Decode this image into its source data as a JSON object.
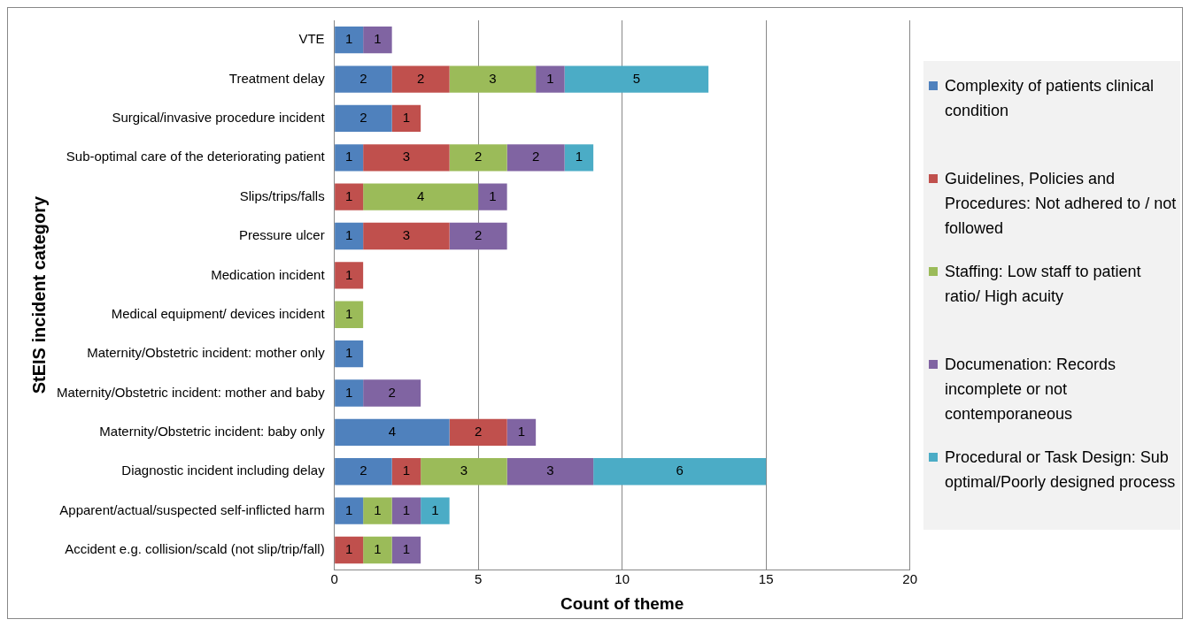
{
  "chart_data": {
    "type": "bar",
    "orientation": "horizontal",
    "stacked": true,
    "xlabel": "Count of theme",
    "ylabel": "StEIS incident category",
    "categories": [
      "VTE",
      "Treatment delay",
      "Surgical/invasive procedure incident",
      "Sub-optimal care of the deteriorating patient",
      "Slips/trips/falls",
      "Pressure ulcer",
      "Medication incident",
      "Medical equipment/ devices incident",
      "Maternity/Obstetric incident: mother only",
      "Maternity/Obstetric incident: mother and baby",
      "Maternity/Obstetric incident: baby only",
      "Diagnostic incident including delay",
      "Apparent/actual/suspected self-inflicted harm",
      "Accident e.g. collision/scald (not slip/trip/fall)"
    ],
    "series": [
      {
        "name": "Complexity of patients clinical condition",
        "color": "#4f81bd",
        "values": [
          1,
          2,
          2,
          1,
          null,
          1,
          null,
          null,
          1,
          1,
          4,
          2,
          1,
          null
        ]
      },
      {
        "name": "Guidelines, Policies and Procedures: Not adhered to / not followed",
        "color": "#c0504d",
        "values": [
          null,
          2,
          1,
          3,
          1,
          3,
          1,
          null,
          null,
          null,
          2,
          1,
          null,
          1
        ]
      },
      {
        "name": "Staffing: Low staff to patient ratio/ High acuity",
        "color": "#9bbb59",
        "values": [
          null,
          3,
          null,
          2,
          4,
          null,
          null,
          1,
          null,
          null,
          null,
          3,
          1,
          1
        ]
      },
      {
        "name": "Documenation: Records incomplete or not contemporaneous",
        "color": "#8064a2",
        "values": [
          1,
          1,
          null,
          2,
          1,
          2,
          null,
          null,
          null,
          2,
          1,
          3,
          1,
          1
        ]
      },
      {
        "name": "Procedural or Task Design: Sub optimal/Poorly designed process",
        "color": "#4bacc6",
        "values": [
          null,
          5,
          null,
          1,
          null,
          null,
          null,
          null,
          null,
          null,
          null,
          6,
          1,
          null
        ]
      }
    ],
    "xlim": [
      0,
      20
    ],
    "xticks": [
      0,
      5,
      10,
      15,
      20
    ],
    "grid": "x",
    "legend": "right",
    "data_labels": true
  }
}
